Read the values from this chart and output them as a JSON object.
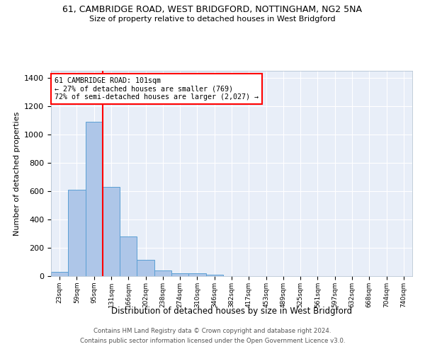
{
  "title": "61, CAMBRIDGE ROAD, WEST BRIDGFORD, NOTTINGHAM, NG2 5NA",
  "subtitle": "Size of property relative to detached houses in West Bridgford",
  "xlabel": "Distribution of detached houses by size in West Bridgford",
  "ylabel": "Number of detached properties",
  "bins": [
    "23sqm",
    "59sqm",
    "95sqm",
    "131sqm",
    "166sqm",
    "202sqm",
    "238sqm",
    "274sqm",
    "310sqm",
    "346sqm",
    "382sqm",
    "417sqm",
    "453sqm",
    "489sqm",
    "525sqm",
    "561sqm",
    "597sqm",
    "632sqm",
    "668sqm",
    "704sqm",
    "740sqm"
  ],
  "counts": [
    30,
    610,
    1090,
    630,
    280,
    115,
    40,
    22,
    22,
    12,
    0,
    0,
    0,
    0,
    0,
    0,
    0,
    0,
    0,
    0
  ],
  "bar_color": "#aec6e8",
  "bar_edge_color": "#5a9fd4",
  "vline_color": "red",
  "vline_x_idx": 2,
  "annotation_line1": "61 CAMBRIDGE ROAD: 101sqm",
  "annotation_line2": "← 27% of detached houses are smaller (769)",
  "annotation_line3": "72% of semi-detached houses are larger (2,027) →",
  "annotation_box_color": "white",
  "annotation_box_edge": "red",
  "ylim": [
    0,
    1450
  ],
  "yticks": [
    0,
    200,
    400,
    600,
    800,
    1000,
    1200,
    1400
  ],
  "bg_color": "#e8eef8",
  "grid_color": "white",
  "footer1": "Contains HM Land Registry data © Crown copyright and database right 2024.",
  "footer2": "Contains public sector information licensed under the Open Government Licence v3.0."
}
